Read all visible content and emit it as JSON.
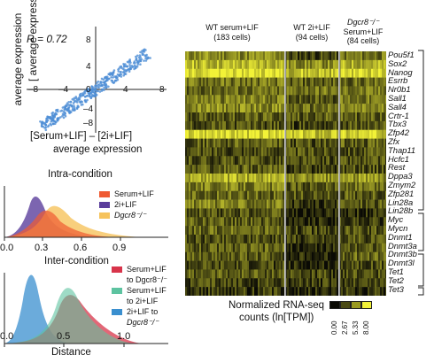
{
  "scatter": {
    "r_label": "R = 0.72",
    "ylabel_fragment": "[ average expression",
    "ylabel_line2": "average expression",
    "xlabel_line1": "[Serum+LIF] – [2i+LIF]",
    "xlabel_line2": "average expression",
    "ticks_x": [
      "–8",
      "–4",
      "0",
      "4",
      "8"
    ],
    "ticks_y": [
      "8",
      "4",
      "–4",
      "–8"
    ]
  },
  "intra": {
    "title": "Intra-condition",
    "legend": [
      {
        "label": "Serum+LIF",
        "color": "#ef5a32"
      },
      {
        "label": "2i+LIF",
        "color": "#5b3e9c"
      },
      {
        "label": "Dgcr8⁻/⁻",
        "color": "#f6c35c"
      }
    ],
    "ticks_x": [
      "0.0",
      "0.3",
      "0.6",
      "0.9"
    ]
  },
  "inter": {
    "title": "Inter-condition",
    "legend": [
      {
        "label": "Serum+LIF",
        "label2": "to Dgcr8⁻/⁻",
        "color": "#d8344a"
      },
      {
        "label": "Serum+LIF",
        "label2": "to 2i+LIF",
        "color": "#5dc3a0"
      },
      {
        "label": "2i+LIF to",
        "label2": "Dgcr8⁻/⁻",
        "color": "#3a8fcf"
      }
    ],
    "ticks_x": [
      "0.0",
      "0.5",
      "1.0"
    ],
    "xlabel": "Distance"
  },
  "heatmap": {
    "columns": [
      {
        "line1": "WT serum+LIF",
        "line2": "(183 cells)"
      },
      {
        "line1": "WT 2i+LIF",
        "line2": "(94 cells)"
      },
      {
        "line1": "Dgcr8⁻/⁻",
        "line2": "Serum+LIF",
        "line3": "(84 cells)"
      }
    ],
    "genes": [
      "Pou5f1",
      "Sox2",
      "Nanog",
      "Esrrb",
      "Nr0b1",
      "Sall1",
      "Sall4",
      "Crtr-1",
      "Tbx3",
      "Zfp42",
      "Zfx",
      "Thap11",
      "Hcfc1",
      "Rest",
      "Dppa3",
      "Zmym2",
      "Zfp281",
      "Lin28a",
      "Lin28b",
      "Myc",
      "Mycn",
      "Dnmt1",
      "Dnmt3a",
      "Dnmt3b",
      "Dnmt3l",
      "Tet1",
      "Tet2",
      "Tet3"
    ],
    "colorbar": {
      "title_line1": "Normalized RNA-seq",
      "title_line2": "counts (ln[TPM])",
      "ticks": [
        "0.00",
        "2.67",
        "5.33",
        "8.00"
      ],
      "colors": [
        "#0b0b05",
        "#4a4a14",
        "#9a9a22",
        "#f2f23a"
      ]
    }
  }
}
